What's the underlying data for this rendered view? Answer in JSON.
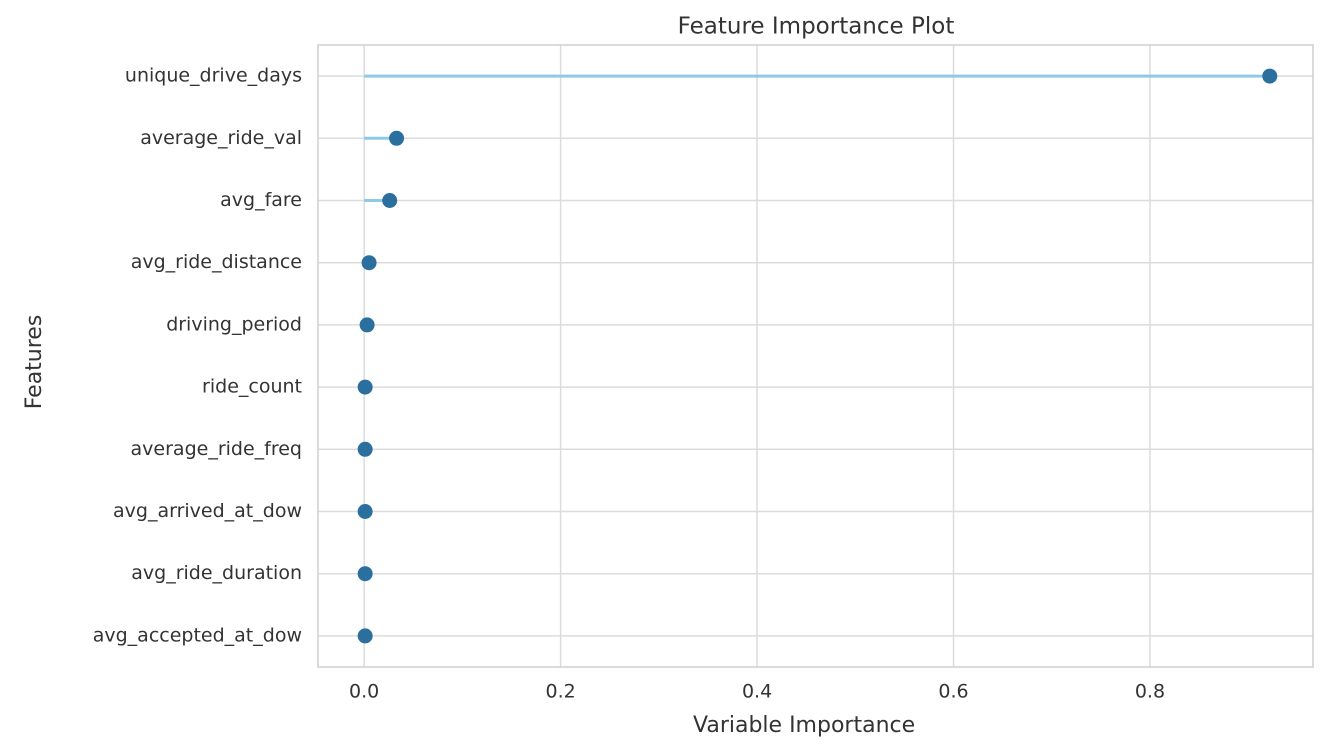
{
  "chart_data": {
    "type": "lollipop",
    "title": "Feature Importance Plot",
    "xlabel": "Variable Importance",
    "ylabel": "Features",
    "categories": [
      "unique_drive_days",
      "average_ride_val",
      "avg_fare",
      "avg_ride_distance",
      "driving_period",
      "ride_count",
      "average_ride_freq",
      "avg_arrived_at_dow",
      "avg_ride_duration",
      "avg_accepted_at_dow"
    ],
    "values": [
      0.922,
      0.033,
      0.026,
      0.005,
      0.003,
      0.001,
      0.001,
      0.001,
      0.001,
      0.001
    ],
    "xlim": [
      -0.047,
      0.966
    ],
    "xticks": [
      {
        "value": 0,
        "label": "0.0"
      },
      0.2,
      0.4,
      0.6,
      0.8
    ],
    "color": "#2b6f9e",
    "stem_color": "#8ec9e8",
    "grid": true
  }
}
